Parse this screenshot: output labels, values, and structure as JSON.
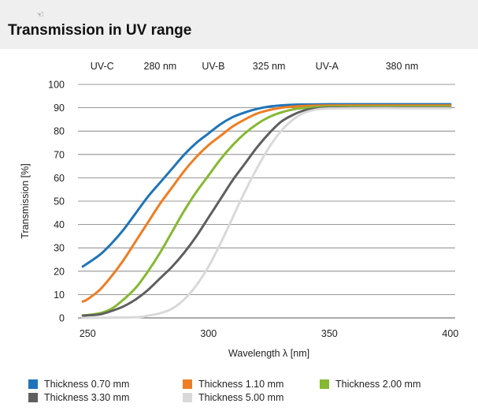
{
  "header": {
    "title": "Transmission in UV range",
    "icon": "hand-icon"
  },
  "chart_data": {
    "type": "line",
    "title": "Transmission in UV range",
    "xlabel": "Wavelength λ [nm]",
    "ylabel": "Transmission [%]",
    "xlim": [
      246,
      402
    ],
    "ylim": [
      0,
      100
    ],
    "x_ticks": [
      250,
      300,
      350,
      400
    ],
    "y_ticks": [
      0,
      10,
      20,
      30,
      40,
      50,
      60,
      70,
      80,
      90,
      100
    ],
    "grid": "horizontal",
    "legend_position": "bottom",
    "band_labels": [
      {
        "text": "UV-C",
        "x": 256
      },
      {
        "text": "280 nm",
        "x": 280
      },
      {
        "text": "UV-B",
        "x": 302
      },
      {
        "text": "325 nm",
        "x": 325
      },
      {
        "text": "UV-A",
        "x": 349
      },
      {
        "text": "380 nm",
        "x": 380
      }
    ],
    "series": [
      {
        "name": "Thickness 0.70 mm",
        "color": "#1f74b9",
        "x": [
          248,
          255,
          260,
          265,
          270,
          275,
          280,
          285,
          290,
          295,
          300,
          305,
          310,
          315,
          320,
          325,
          330,
          335,
          340,
          350,
          360,
          380,
          400
        ],
        "y": [
          22,
          27,
          32,
          38,
          45,
          52,
          58,
          64,
          70,
          75,
          79,
          83,
          86,
          88,
          89.5,
          90.5,
          91,
          91.3,
          91.4,
          91.5,
          91.5,
          91.5,
          91.5
        ]
      },
      {
        "name": "Thickness 1.10 mm",
        "color": "#ee7d23",
        "x": [
          248,
          250,
          255,
          260,
          265,
          270,
          275,
          280,
          285,
          290,
          295,
          300,
          305,
          310,
          315,
          320,
          325,
          330,
          335,
          340,
          350,
          360,
          380,
          400
        ],
        "y": [
          7,
          8,
          12,
          18,
          25,
          33,
          41,
          49,
          56,
          63,
          69,
          74,
          78,
          82,
          85,
          87.5,
          89,
          90,
          90.5,
          90.8,
          91,
          91,
          91,
          91
        ]
      },
      {
        "name": "Thickness 2.00 mm",
        "color": "#86b833",
        "x": [
          248,
          255,
          260,
          265,
          270,
          275,
          280,
          285,
          290,
          295,
          300,
          305,
          310,
          315,
          320,
          325,
          330,
          335,
          340,
          345,
          350,
          360,
          380,
          400
        ],
        "y": [
          1,
          2,
          4,
          8,
          13,
          20,
          28,
          37,
          46,
          54,
          61,
          68,
          74,
          79,
          83,
          86,
          88,
          89.3,
          90,
          90.3,
          90.5,
          90.5,
          90.5,
          90.5
        ]
      },
      {
        "name": "Thickness 3.30 mm",
        "color": "#5f5f5f",
        "x": [
          248,
          255,
          260,
          265,
          270,
          275,
          280,
          285,
          290,
          295,
          300,
          305,
          310,
          315,
          320,
          325,
          330,
          335,
          340,
          345,
          350,
          360,
          380,
          400
        ],
        "y": [
          1,
          1.5,
          3,
          5,
          8,
          12,
          17,
          22,
          28,
          35,
          43,
          51,
          59,
          66,
          73,
          79,
          84,
          87,
          89,
          89.7,
          90,
          90,
          90,
          90
        ]
      },
      {
        "name": "Thickness 5.00 mm",
        "color": "#d9d9d9",
        "x": [
          248,
          270,
          275,
          280,
          285,
          290,
          295,
          300,
          305,
          310,
          315,
          320,
          325,
          330,
          335,
          340,
          345,
          350,
          360,
          380,
          400
        ],
        "y": [
          0,
          0.3,
          1,
          2,
          4,
          8,
          14,
          22,
          32,
          43,
          54,
          64,
          73,
          80,
          85,
          88,
          89.3,
          89.7,
          89.8,
          89.8,
          89.8
        ]
      }
    ]
  }
}
